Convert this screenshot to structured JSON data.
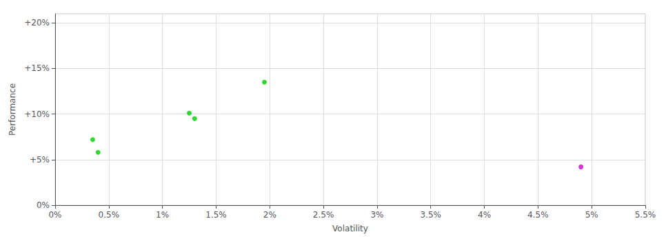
{
  "chart_data": {
    "type": "scatter",
    "xlabel": "Volatility",
    "ylabel": "Performance",
    "xlim": [
      0,
      0.055
    ],
    "ylim": [
      0,
      0.21
    ],
    "xticks": [
      {
        "value": 0,
        "label": "0%"
      },
      {
        "value": 0.005,
        "label": "0.5%"
      },
      {
        "value": 0.01,
        "label": "1%"
      },
      {
        "value": 0.015,
        "label": "1.5%"
      },
      {
        "value": 0.02,
        "label": "2%"
      },
      {
        "value": 0.025,
        "label": "2.5%"
      },
      {
        "value": 0.03,
        "label": "3%"
      },
      {
        "value": 0.035,
        "label": "3.5%"
      },
      {
        "value": 0.04,
        "label": "4%"
      },
      {
        "value": 0.045,
        "label": "4.5%"
      },
      {
        "value": 0.05,
        "label": "5%"
      },
      {
        "value": 0.055,
        "label": "5.5%"
      }
    ],
    "yticks": [
      {
        "value": 0,
        "label": "0%"
      },
      {
        "value": 0.05,
        "label": "+5%"
      },
      {
        "value": 0.1,
        "label": "+10%"
      },
      {
        "value": 0.15,
        "label": "+15%"
      },
      {
        "value": 0.2,
        "label": "+20%"
      }
    ],
    "grid": true,
    "series": [
      {
        "color": "#00cc00",
        "x": [
          0.0035,
          0.004,
          0.0125,
          0.013,
          0.0195
        ],
        "values": [
          0.072,
          0.058,
          0.101,
          0.095,
          0.135
        ]
      },
      {
        "color": "#cc00cc",
        "x": [
          0.049
        ],
        "values": [
          0.042
        ]
      }
    ]
  }
}
